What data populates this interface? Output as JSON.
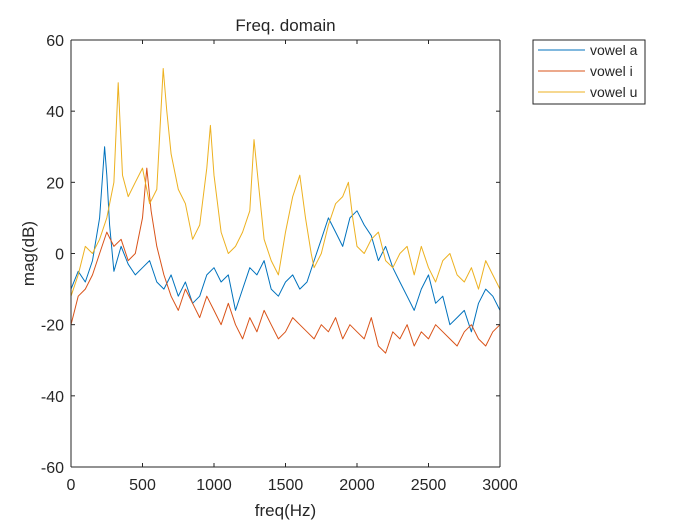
{
  "chart_data": {
    "type": "line",
    "title": "Freq. domain",
    "xlabel": "freq(Hz)",
    "ylabel": "mag(dB)",
    "xlim": [
      0,
      3000
    ],
    "ylim": [
      -60,
      60
    ],
    "xticks": [
      0,
      500,
      1000,
      1500,
      2000,
      2500,
      3000
    ],
    "yticks": [
      -60,
      -40,
      -20,
      0,
      20,
      40,
      60
    ],
    "xtick_labels": [
      "0",
      "500",
      "1000",
      "1500",
      "2000",
      "2500",
      "3000"
    ],
    "ytick_labels": [
      "-60",
      "-40",
      "-20",
      "0",
      "20",
      "40",
      "60"
    ],
    "grid": false,
    "legend_position": "outside-top-right",
    "series": [
      {
        "name": "vowel a",
        "color": "#0072BD",
        "x": [
          0,
          50,
          100,
          150,
          200,
          235,
          250,
          270,
          300,
          350,
          400,
          450,
          500,
          550,
          600,
          650,
          700,
          750,
          800,
          850,
          900,
          950,
          1000,
          1050,
          1100,
          1150,
          1200,
          1250,
          1300,
          1350,
          1400,
          1450,
          1500,
          1550,
          1600,
          1650,
          1700,
          1750,
          1800,
          1850,
          1900,
          1950,
          2000,
          2050,
          2100,
          2150,
          2200,
          2250,
          2300,
          2350,
          2400,
          2450,
          2500,
          2550,
          2600,
          2650,
          2700,
          2750,
          2800,
          2850,
          2900,
          2950,
          3000
        ],
        "y": [
          -10,
          -5,
          -8,
          -2,
          10,
          30,
          22,
          8,
          -5,
          2,
          -3,
          -6,
          -4,
          -2,
          -8,
          -10,
          -6,
          -12,
          -8,
          -14,
          -12,
          -6,
          -4,
          -8,
          -6,
          -16,
          -10,
          -4,
          -6,
          -2,
          -10,
          -12,
          -8,
          -6,
          -10,
          -8,
          -2,
          4,
          10,
          6,
          2,
          10,
          12,
          8,
          5,
          -2,
          2,
          -4,
          -8,
          -12,
          -16,
          -10,
          -6,
          -14,
          -12,
          -20,
          -18,
          -16,
          -22,
          -14,
          -10,
          -12,
          -16
        ]
      },
      {
        "name": "vowel i",
        "color": "#D95319",
        "x": [
          0,
          50,
          100,
          150,
          200,
          250,
          300,
          350,
          400,
          450,
          500,
          530,
          560,
          600,
          650,
          700,
          750,
          800,
          850,
          900,
          950,
          1000,
          1050,
          1100,
          1150,
          1200,
          1250,
          1300,
          1350,
          1400,
          1450,
          1500,
          1550,
          1600,
          1650,
          1700,
          1750,
          1800,
          1850,
          1900,
          1950,
          2000,
          2050,
          2100,
          2150,
          2200,
          2250,
          2300,
          2350,
          2400,
          2450,
          2500,
          2550,
          2600,
          2650,
          2700,
          2750,
          2800,
          2850,
          2900,
          2950,
          3000
        ],
        "y": [
          -20,
          -12,
          -10,
          -6,
          0,
          6,
          2,
          4,
          -2,
          0,
          10,
          24,
          12,
          2,
          -6,
          -12,
          -16,
          -10,
          -14,
          -18,
          -12,
          -16,
          -20,
          -14,
          -20,
          -24,
          -18,
          -22,
          -16,
          -20,
          -24,
          -22,
          -18,
          -20,
          -22,
          -24,
          -20,
          -22,
          -18,
          -24,
          -20,
          -22,
          -24,
          -18,
          -26,
          -28,
          -22,
          -24,
          -20,
          -26,
          -22,
          -24,
          -20,
          -22,
          -24,
          -26,
          -22,
          -20,
          -24,
          -26,
          -22,
          -20
        ]
      },
      {
        "name": "vowel u",
        "color": "#EDB120",
        "x": [
          0,
          50,
          100,
          150,
          200,
          250,
          300,
          330,
          360,
          400,
          450,
          500,
          550,
          600,
          645,
          670,
          700,
          750,
          800,
          850,
          900,
          950,
          975,
          1000,
          1050,
          1100,
          1150,
          1200,
          1250,
          1280,
          1310,
          1350,
          1400,
          1450,
          1500,
          1550,
          1600,
          1640,
          1680,
          1700,
          1750,
          1800,
          1850,
          1900,
          1940,
          1970,
          2000,
          2050,
          2100,
          2150,
          2200,
          2250,
          2300,
          2350,
          2400,
          2450,
          2500,
          2550,
          2600,
          2650,
          2700,
          2750,
          2800,
          2850,
          2900,
          2950,
          3000
        ],
        "y": [
          -12,
          -6,
          2,
          0,
          4,
          10,
          20,
          48,
          22,
          16,
          20,
          24,
          14,
          18,
          52,
          40,
          28,
          18,
          14,
          4,
          8,
          24,
          36,
          22,
          6,
          0,
          2,
          6,
          12,
          32,
          20,
          4,
          -2,
          -6,
          6,
          16,
          22,
          10,
          0,
          -4,
          0,
          8,
          14,
          16,
          20,
          10,
          2,
          0,
          4,
          6,
          -2,
          -4,
          0,
          2,
          -6,
          2,
          -4,
          -8,
          -2,
          0,
          -6,
          -8,
          -4,
          -10,
          -2,
          -6,
          -10
        ]
      }
    ]
  }
}
